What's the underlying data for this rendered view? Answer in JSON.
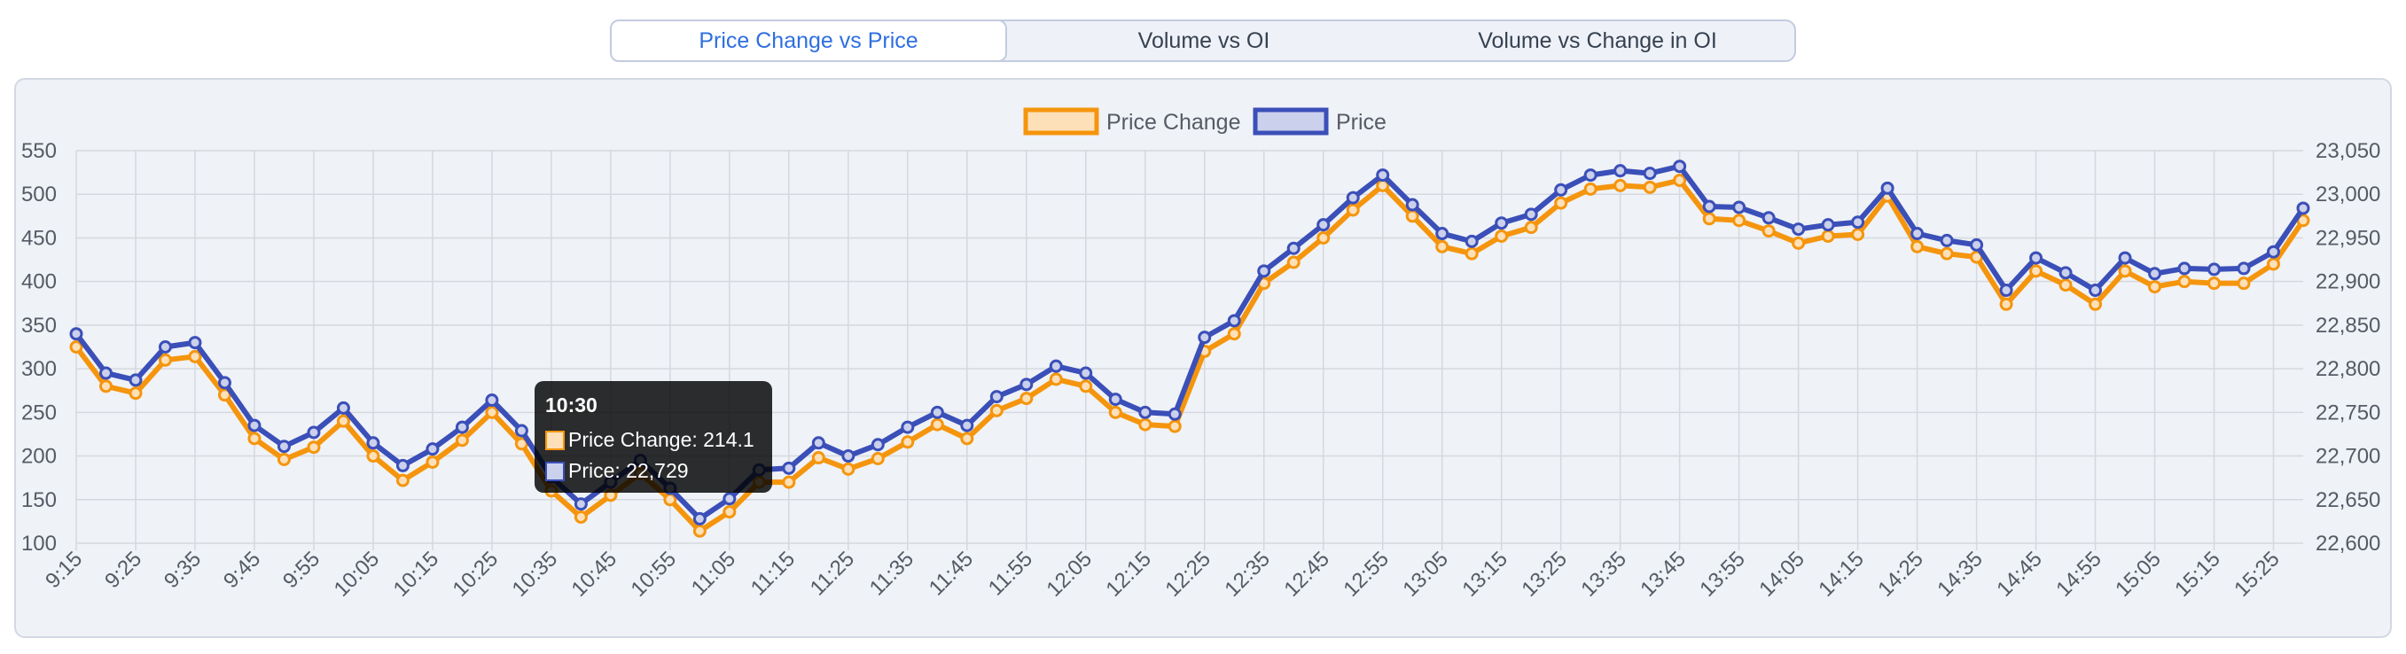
{
  "tabs": [
    {
      "label": "Price Change vs Price",
      "active": true
    },
    {
      "label": "Volume vs OI",
      "active": false
    },
    {
      "label": "Volume vs Change in OI",
      "active": false
    }
  ],
  "tooltip": {
    "title": "10:30",
    "price_change_text": "Price Change: 214.1",
    "price_text": "Price: 22,729"
  },
  "colors": {
    "price_change_line": "#f5950d",
    "price_change_fill": "#fde0b8",
    "price_line": "#3b4fb8",
    "price_fill": "#cbd0ec",
    "grid": "#d5d8de"
  },
  "chart_data": {
    "type": "line",
    "x": [
      "9:15",
      "9:20",
      "9:25",
      "9:30",
      "9:35",
      "9:40",
      "9:45",
      "9:50",
      "9:55",
      "10:00",
      "10:05",
      "10:10",
      "10:15",
      "10:20",
      "10:25",
      "10:30",
      "10:35",
      "10:40",
      "10:45",
      "10:50",
      "10:55",
      "11:00",
      "11:05",
      "11:10",
      "11:15",
      "11:20",
      "11:25",
      "11:30",
      "11:35",
      "11:40",
      "11:45",
      "11:50",
      "11:55",
      "12:00",
      "12:05",
      "12:10",
      "12:15",
      "12:20",
      "12:25",
      "12:30",
      "12:35",
      "12:40",
      "12:45",
      "12:50",
      "12:55",
      "13:00",
      "13:05",
      "13:10",
      "13:15",
      "13:20",
      "13:25",
      "13:30",
      "13:35",
      "13:40",
      "13:45",
      "13:50",
      "13:55",
      "14:00",
      "14:05",
      "14:10",
      "14:15",
      "14:20",
      "14:25",
      "14:30",
      "14:35",
      "14:40",
      "14:45",
      "14:50",
      "14:55",
      "15:00",
      "15:05",
      "15:10",
      "15:15",
      "15:20",
      "15:25",
      "15:30"
    ],
    "x_tick_labels": [
      "9:15",
      "9:25",
      "9:35",
      "9:45",
      "9:55",
      "10:05",
      "10:15",
      "10:25",
      "10:35",
      "10:45",
      "10:55",
      "11:05",
      "11:15",
      "11:25",
      "11:35",
      "11:45",
      "11:55",
      "12:05",
      "12:15",
      "12:25",
      "12:35",
      "12:45",
      "12:55",
      "13:05",
      "13:15",
      "13:25",
      "13:35",
      "13:45",
      "13:55",
      "14:05",
      "14:15",
      "14:25",
      "14:35",
      "14:45",
      "14:55",
      "15:05",
      "15:15",
      "15:25"
    ],
    "series": [
      {
        "name": "Price Change",
        "axis": "left",
        "values": [
          325,
          280,
          272,
          310,
          314,
          270,
          220,
          196,
          210,
          240,
          200,
          172,
          193,
          218,
          250,
          214,
          160,
          130,
          155,
          180,
          150,
          114,
          136,
          170,
          170,
          198,
          185,
          197,
          216,
          236,
          220,
          252,
          266,
          288,
          280,
          250,
          236,
          234,
          320,
          340,
          398,
          422,
          450,
          482,
          510,
          475,
          440,
          432,
          452,
          462,
          490,
          506,
          510,
          508,
          516,
          472,
          470,
          458,
          444,
          452,
          454,
          498,
          440,
          432,
          428,
          374,
          412,
          396,
          374,
          412,
          394,
          400,
          398,
          398,
          420,
          470
        ]
      },
      {
        "name": "Price",
        "axis": "right",
        "values": [
          22840,
          22795,
          22787,
          22825,
          22830,
          22784,
          22735,
          22711,
          22727,
          22755,
          22715,
          22689,
          22708,
          22733,
          22764,
          22729,
          22676,
          22645,
          22670,
          22695,
          22663,
          22628,
          22651,
          22684,
          22686,
          22715,
          22700,
          22713,
          22733,
          22750,
          22735,
          22768,
          22782,
          22803,
          22795,
          22765,
          22750,
          22748,
          22836,
          22855,
          22912,
          22938,
          22965,
          22996,
          23022,
          22988,
          22955,
          22946,
          22967,
          22977,
          23005,
          23022,
          23027,
          23024,
          23032,
          22986,
          22985,
          22973,
          22960,
          22965,
          22968,
          23007,
          22955,
          22947,
          22942,
          22890,
          22927,
          22910,
          22890,
          22927,
          22909,
          22915,
          22914,
          22915,
          22934,
          22984
        ]
      }
    ],
    "y_left": {
      "ticks": [
        "550",
        "500",
        "450",
        "400",
        "350",
        "300",
        "250",
        "200",
        "150",
        "100"
      ],
      "min": 100,
      "max": 550
    },
    "y_right": {
      "ticks": [
        "23,050",
        "23,000",
        "22,950",
        "22,900",
        "22,850",
        "22,800",
        "22,750",
        "22,700",
        "22,650",
        "22,600"
      ],
      "min": 22600,
      "max": 23050
    },
    "legend": {
      "position": "top",
      "items": [
        "Price Change",
        "Price"
      ]
    },
    "grid": true
  }
}
